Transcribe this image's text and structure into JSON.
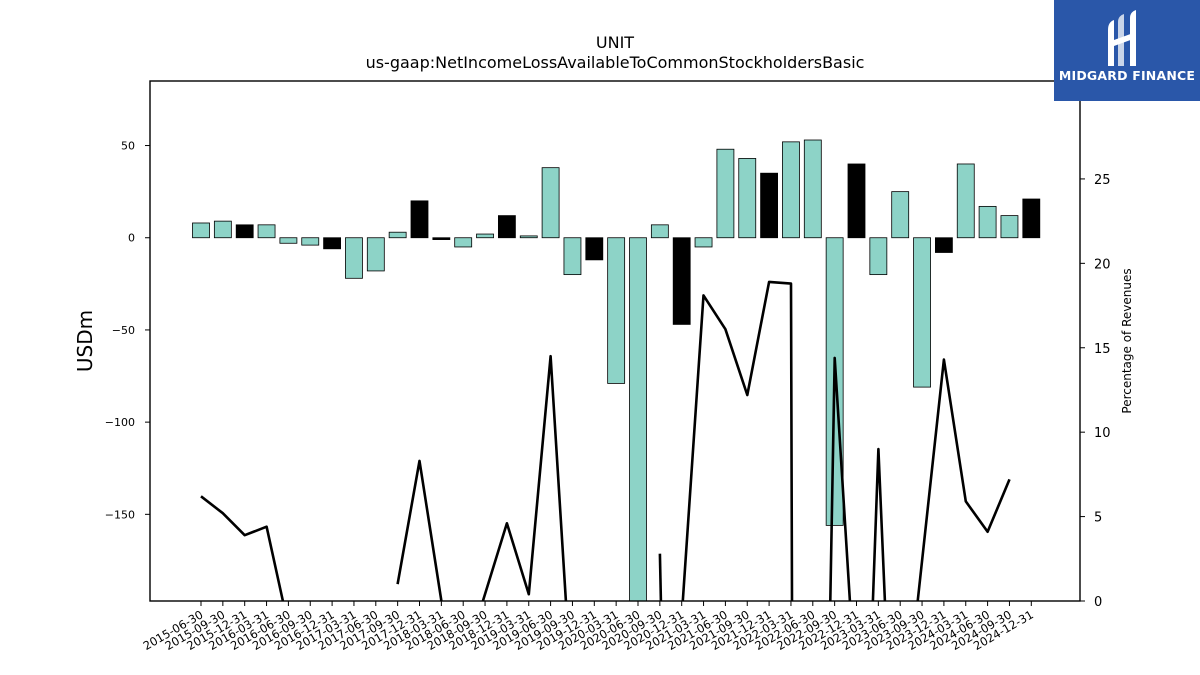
{
  "chart_data": {
    "type": "bar",
    "title": "UNIT",
    "subtitle": "us-gaap:NetIncomeLossAvailableToCommonStockholdersBasic",
    "ylabel": "USDm",
    "ylabel_right": "Percentage of Revenues",
    "ylim": [
      -197,
      85
    ],
    "ylim_right": [
      0,
      30.8
    ],
    "yticks": [
      50,
      0,
      -50,
      -100,
      -150
    ],
    "yticks_right": [
      0,
      5,
      10,
      15,
      20,
      25
    ],
    "categories": [
      "2015-06-30",
      "2015-09-30",
      "2015-12-31",
      "2016-03-31",
      "2016-06-30",
      "2016-09-30",
      "2016-12-31",
      "2017-03-31",
      "2017-06-30",
      "2017-09-30",
      "2017-12-31",
      "2018-03-31",
      "2018-06-30",
      "2018-09-30",
      "2018-12-31",
      "2019-03-31",
      "2019-06-30",
      "2019-09-30",
      "2019-12-31",
      "2020-03-31",
      "2020-06-30",
      "2020-09-30",
      "2020-12-31",
      "2021-03-31",
      "2021-06-30",
      "2021-09-30",
      "2021-12-31",
      "2022-03-31",
      "2022-06-30",
      "2022-09-30",
      "2022-12-31",
      "2023-03-31",
      "2023-06-30",
      "2023-09-30",
      "2023-12-31",
      "2024-03-31",
      "2024-06-30",
      "2024-09-30",
      "2024-12-31"
    ],
    "series": [
      {
        "values": [
          8,
          9,
          7,
          7,
          -3,
          -4,
          -6,
          -22,
          -18,
          3,
          20,
          -1,
          -5,
          2,
          12,
          1,
          38,
          -20,
          -12,
          -79,
          -197,
          7,
          -47,
          -5,
          48,
          43,
          35,
          52,
          53,
          -156,
          40,
          -20,
          25,
          -81,
          -8,
          40,
          17,
          12,
          21
        ],
        "colors": [
          "#8dd3c7",
          "#8dd3c7",
          "#000000",
          "#8dd3c7",
          "#8dd3c7",
          "#8dd3c7",
          "#000000",
          "#8dd3c7",
          "#8dd3c7",
          "#8dd3c7",
          "#000000",
          "#000000",
          "#8dd3c7",
          "#8dd3c7",
          "#000000",
          "#8dd3c7",
          "#8dd3c7",
          "#8dd3c7",
          "#000000",
          "#8dd3c7",
          "#8dd3c7",
          "#8dd3c7",
          "#000000",
          "#8dd3c7",
          "#8dd3c7",
          "#8dd3c7",
          "#000000",
          "#8dd3c7",
          "#8dd3c7",
          "#8dd3c7",
          "#000000",
          "#8dd3c7",
          "#8dd3c7",
          "#8dd3c7",
          "#000000",
          "#8dd3c7",
          "#8dd3c7",
          "#8dd3c7",
          "#000000"
        ]
      },
      {
        "type": "line",
        "axis": "right",
        "color": "#000000",
        "segments": [
          [
            [
              0,
              6.2
            ],
            [
              1,
              5.2
            ],
            [
              2,
              3.9
            ],
            [
              3,
              4.4
            ],
            [
              3.75,
              0
            ]
          ],
          [
            [
              9,
              1.0
            ],
            [
              10,
              8.3
            ],
            [
              11,
              0
            ]
          ],
          [
            [
              12.9,
              0
            ],
            [
              14,
              4.6
            ],
            [
              15,
              0.4
            ],
            [
              16,
              14.5
            ],
            [
              16.7,
              0
            ]
          ],
          [
            [
              21,
              2.8
            ],
            [
              21.05,
              0
            ]
          ],
          [
            [
              22.05,
              0
            ],
            [
              23,
              18.1
            ],
            [
              24,
              16.1
            ],
            [
              25,
              12.2
            ],
            [
              26,
              18.9
            ],
            [
              27,
              18.8
            ],
            [
              27.05,
              0
            ]
          ],
          [
            [
              28.8,
              0
            ],
            [
              29,
              14.4
            ],
            [
              29.7,
              0
            ]
          ],
          [
            [
              30.75,
              0
            ],
            [
              31,
              9.0
            ],
            [
              31.3,
              0
            ]
          ],
          [
            [
              32.8,
              0
            ],
            [
              34,
              14.3
            ],
            [
              35,
              5.9
            ],
            [
              36,
              4.1
            ],
            [
              37,
              7.2
            ]
          ]
        ]
      }
    ]
  },
  "logo": {
    "text": "MIDGARD FINANCE"
  }
}
